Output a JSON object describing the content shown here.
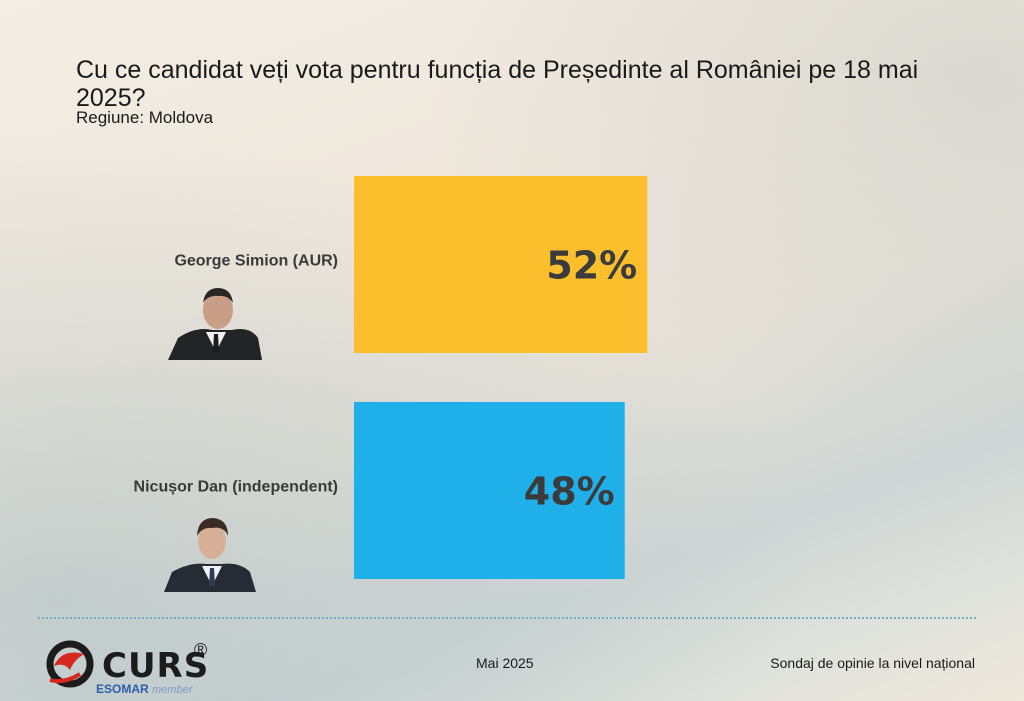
{
  "header": {
    "title": "Cu ce candidat veți vota pentru funcția de Președinte al României pe 18 mai 2025?",
    "subtitle": "Regiune: Moldova"
  },
  "chart_data": {
    "type": "bar",
    "orientation": "horizontal",
    "title": "Cu ce candidat veți vota pentru funcția de Președinte al României pe 18 mai 2025?",
    "subtitle": "Regiune: Moldova",
    "categories": [
      "George Simion (AUR)",
      "Nicușor Dan (independent)"
    ],
    "values": [
      52,
      48
    ],
    "value_labels": [
      "52%",
      "48%"
    ],
    "colors": [
      "#fbbf2e",
      "#1fb0ea"
    ],
    "xlim": [
      0,
      100
    ],
    "grid": false
  },
  "footer": {
    "date": "Mai 2025",
    "note": "Sondaj de opinie la nivel național",
    "logo_text": "CURS",
    "logo_reg": "®",
    "logo_esomar": "ESOMAR",
    "logo_member": "member"
  }
}
